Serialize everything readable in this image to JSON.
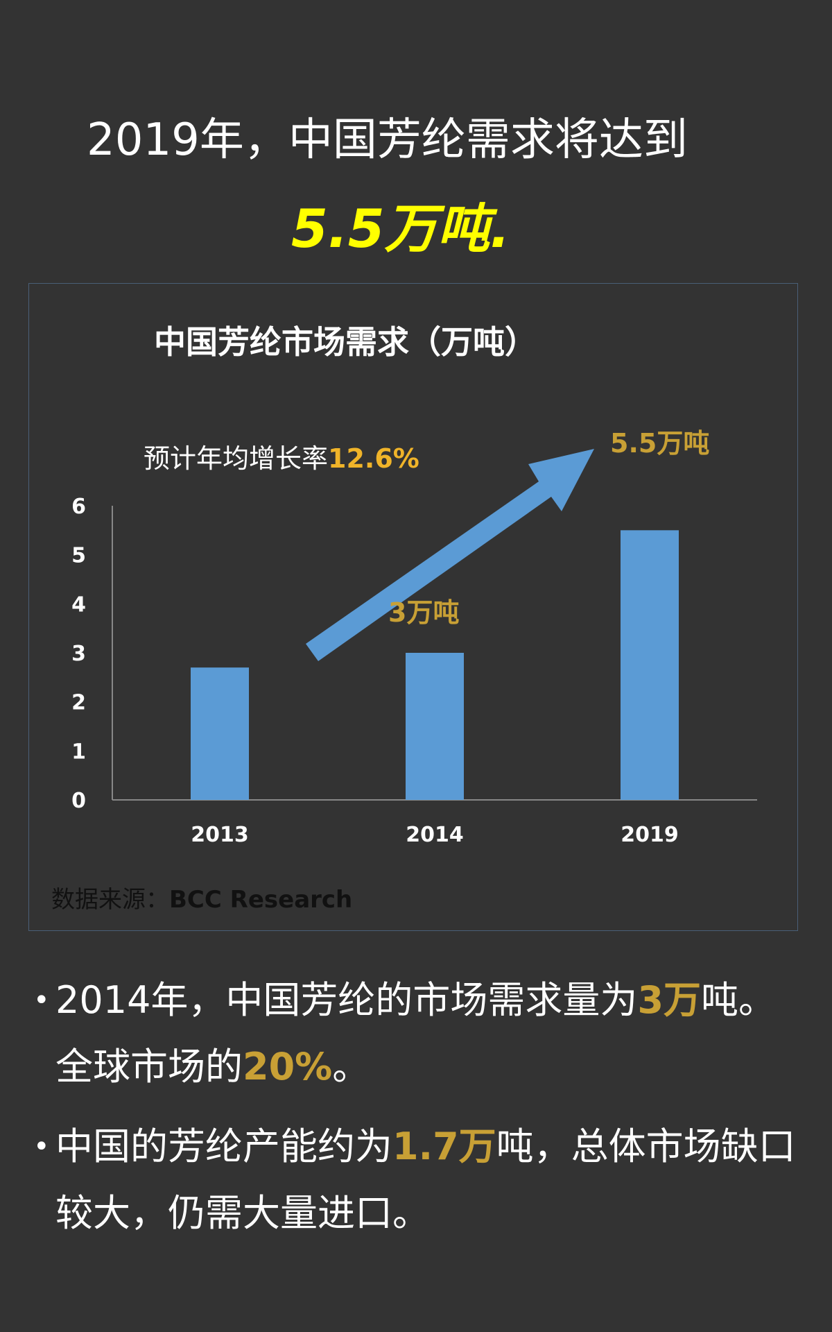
{
  "headline": "2019年，中国芳纶需求将达到",
  "highlight": "5.5万吨.",
  "colors": {
    "background": "#333333",
    "bar": "#5b9bd5",
    "gold": "#c8a035",
    "highlight": "#ffff00"
  },
  "chart_data": {
    "type": "bar",
    "title": "中国芳纶市场需求（万吨）",
    "categories": [
      "2013",
      "2014",
      "2019"
    ],
    "values": [
      2.7,
      3.0,
      5.5
    ],
    "ylim": [
      0,
      6
    ],
    "yticks": [
      "0",
      "1",
      "2",
      "3",
      "4",
      "5",
      "6"
    ],
    "grid": false,
    "annotations": {
      "growth_label": "预计年均增长率",
      "growth_value": "12.6%",
      "label_2014": "3万吨",
      "label_2019": "5.5万吨"
    }
  },
  "source": {
    "label": "数据来源：",
    "value": "BCC Research"
  },
  "bullets": [
    {
      "pre": "2014年，中国芳纶的市场需求量为",
      "hl1": "3万",
      "mid": "吨。全球市场的",
      "hl2": "20%",
      "post": "。"
    },
    {
      "pre": "中国的芳纶产能约为",
      "hl1": "1.7万",
      "post": "吨，总体市场缺口较大，仍需大量进口。"
    }
  ],
  "bullet_symbol": "•"
}
